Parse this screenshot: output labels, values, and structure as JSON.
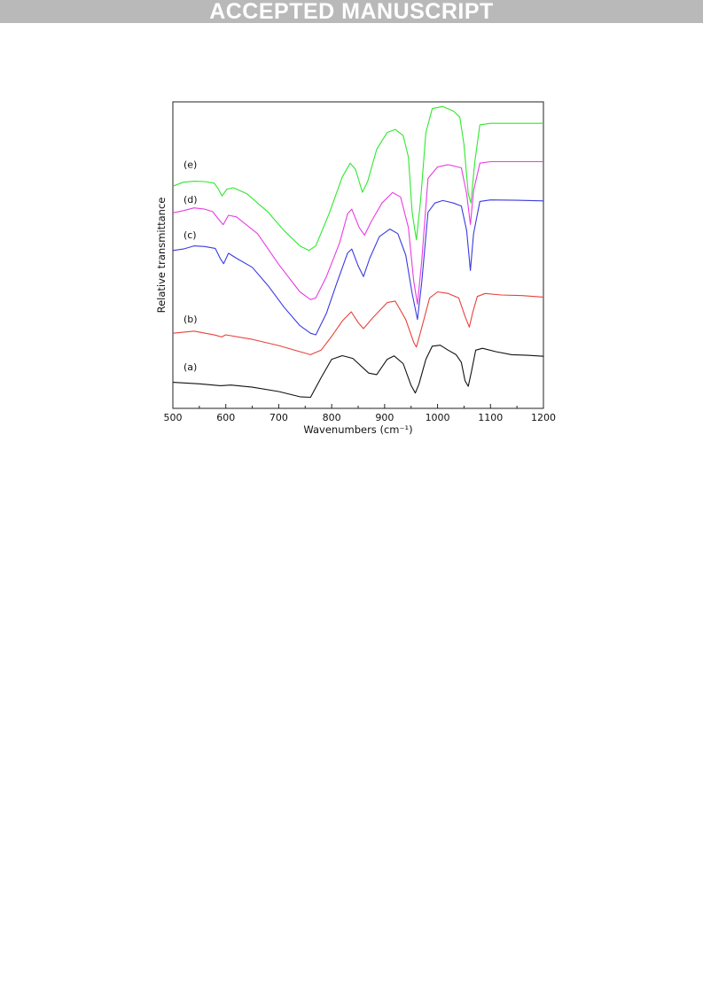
{
  "banner": {
    "text": "ACCEPTED MANUSCRIPT"
  },
  "chart_data": {
    "type": "line",
    "title": "",
    "xlabel": "Wavenumbers (cm⁻¹)",
    "ylabel": "Relative transmittance",
    "xlim": [
      500,
      1200
    ],
    "ylim": [
      0,
      100
    ],
    "x_ticks": [
      "500",
      "600",
      "700",
      "800",
      "900",
      "1000",
      "1100",
      "1200"
    ],
    "y_ticks_shown": false,
    "grid": false,
    "legend": "none",
    "series": [
      {
        "name": "(a)",
        "color": "#111111",
        "points": [
          [
            500,
            8.5
          ],
          [
            550,
            8
          ],
          [
            590,
            7.4
          ],
          [
            610,
            7.6
          ],
          [
            650,
            6.9
          ],
          [
            700,
            5.5
          ],
          [
            740,
            3.8
          ],
          [
            760,
            3.6
          ],
          [
            780,
            10
          ],
          [
            800,
            16
          ],
          [
            820,
            17.2
          ],
          [
            840,
            16.3
          ],
          [
            870,
            11.5
          ],
          [
            885,
            11
          ],
          [
            905,
            16
          ],
          [
            918,
            17.1
          ],
          [
            935,
            14.6
          ],
          [
            950,
            7.5
          ],
          [
            958,
            5
          ],
          [
            965,
            8
          ],
          [
            978,
            16
          ],
          [
            990,
            20.3
          ],
          [
            1005,
            20.6
          ],
          [
            1020,
            19
          ],
          [
            1035,
            17.5
          ],
          [
            1045,
            15
          ],
          [
            1052,
            9
          ],
          [
            1058,
            7.2
          ],
          [
            1064,
            12
          ],
          [
            1072,
            19
          ],
          [
            1085,
            19.6
          ],
          [
            1110,
            18.5
          ],
          [
            1140,
            17.5
          ],
          [
            1170,
            17.3
          ],
          [
            1200,
            17
          ]
        ]
      },
      {
        "name": "(b)",
        "color": "#e8413a",
        "points": [
          [
            500,
            24.5
          ],
          [
            540,
            25.2
          ],
          [
            580,
            23.9
          ],
          [
            592,
            23.3
          ],
          [
            600,
            24
          ],
          [
            650,
            22.5
          ],
          [
            700,
            20.5
          ],
          [
            740,
            18.5
          ],
          [
            760,
            17.5
          ],
          [
            780,
            19
          ],
          [
            800,
            23.5
          ],
          [
            820,
            28.5
          ],
          [
            837,
            31.5
          ],
          [
            850,
            28
          ],
          [
            860,
            26
          ],
          [
            880,
            30
          ],
          [
            905,
            34.5
          ],
          [
            920,
            35
          ],
          [
            940,
            29
          ],
          [
            955,
            21.5
          ],
          [
            960,
            20
          ],
          [
            968,
            25
          ],
          [
            985,
            36
          ],
          [
            1000,
            38
          ],
          [
            1020,
            37.5
          ],
          [
            1040,
            36
          ],
          [
            1052,
            30
          ],
          [
            1060,
            26.5
          ],
          [
            1066,
            31
          ],
          [
            1075,
            36.5
          ],
          [
            1090,
            37.5
          ],
          [
            1120,
            37
          ],
          [
            1160,
            36.8
          ],
          [
            1200,
            36.3
          ]
        ]
      },
      {
        "name": "(c)",
        "color": "#3a3ae0",
        "points": [
          [
            500,
            51.5
          ],
          [
            520,
            52
          ],
          [
            540,
            53
          ],
          [
            560,
            52.8
          ],
          [
            580,
            52.2
          ],
          [
            590,
            48.8
          ],
          [
            596,
            47.2
          ],
          [
            605,
            50.6
          ],
          [
            620,
            49
          ],
          [
            650,
            46
          ],
          [
            680,
            40
          ],
          [
            710,
            33
          ],
          [
            740,
            27
          ],
          [
            760,
            24.5
          ],
          [
            770,
            24
          ],
          [
            790,
            31
          ],
          [
            810,
            41
          ],
          [
            830,
            50.7
          ],
          [
            838,
            52
          ],
          [
            850,
            46.5
          ],
          [
            860,
            43
          ],
          [
            872,
            49
          ],
          [
            890,
            56
          ],
          [
            910,
            58.5
          ],
          [
            925,
            57
          ],
          [
            940,
            50
          ],
          [
            952,
            37.5
          ],
          [
            962,
            29
          ],
          [
            970,
            41
          ],
          [
            982,
            64
          ],
          [
            995,
            67
          ],
          [
            1010,
            67.8
          ],
          [
            1030,
            67
          ],
          [
            1045,
            66
          ],
          [
            1055,
            58
          ],
          [
            1062,
            45
          ],
          [
            1068,
            57
          ],
          [
            1080,
            67.5
          ],
          [
            1100,
            68
          ],
          [
            1150,
            67.9
          ],
          [
            1200,
            67.7
          ]
        ]
      },
      {
        "name": "(d)",
        "color": "#e83ce3",
        "points": [
          [
            500,
            63.8
          ],
          [
            520,
            64.5
          ],
          [
            540,
            65.4
          ],
          [
            560,
            65
          ],
          [
            575,
            64.2
          ],
          [
            585,
            62
          ],
          [
            595,
            59.9
          ],
          [
            605,
            63
          ],
          [
            620,
            62.5
          ],
          [
            660,
            57
          ],
          [
            700,
            47
          ],
          [
            740,
            38
          ],
          [
            760,
            35.5
          ],
          [
            770,
            36
          ],
          [
            790,
            43
          ],
          [
            815,
            54
          ],
          [
            830,
            63.5
          ],
          [
            838,
            65
          ],
          [
            852,
            59
          ],
          [
            862,
            56.5
          ],
          [
            875,
            61
          ],
          [
            895,
            67
          ],
          [
            915,
            70.4
          ],
          [
            930,
            69
          ],
          [
            945,
            59
          ],
          [
            955,
            41.5
          ],
          [
            962,
            34
          ],
          [
            970,
            48
          ],
          [
            982,
            75
          ],
          [
            1000,
            78.8
          ],
          [
            1020,
            79.5
          ],
          [
            1045,
            78.5
          ],
          [
            1055,
            70
          ],
          [
            1062,
            60
          ],
          [
            1068,
            71
          ],
          [
            1080,
            80
          ],
          [
            1100,
            80.5
          ],
          [
            1150,
            80.5
          ],
          [
            1200,
            80.5
          ]
        ]
      },
      {
        "name": "(e)",
        "color": "#2ee82e",
        "points": [
          [
            500,
            72.5
          ],
          [
            520,
            73.8
          ],
          [
            540,
            74.1
          ],
          [
            560,
            74
          ],
          [
            578,
            73.5
          ],
          [
            586,
            71.5
          ],
          [
            593,
            69.3
          ],
          [
            602,
            71.5
          ],
          [
            614,
            72
          ],
          [
            640,
            70
          ],
          [
            680,
            64
          ],
          [
            710,
            58
          ],
          [
            740,
            53
          ],
          [
            757,
            51.5
          ],
          [
            770,
            53
          ],
          [
            795,
            63.5
          ],
          [
            820,
            75.5
          ],
          [
            835,
            80
          ],
          [
            845,
            78
          ],
          [
            858,
            70.5
          ],
          [
            868,
            74
          ],
          [
            885,
            84.5
          ],
          [
            905,
            90
          ],
          [
            920,
            91
          ],
          [
            935,
            89
          ],
          [
            945,
            82
          ],
          [
            952,
            64
          ],
          [
            960,
            55
          ],
          [
            968,
            68
          ],
          [
            978,
            90
          ],
          [
            990,
            97.8
          ],
          [
            1010,
            98.5
          ],
          [
            1030,
            97
          ],
          [
            1042,
            95
          ],
          [
            1050,
            86
          ],
          [
            1058,
            70
          ],
          [
            1063,
            67
          ],
          [
            1070,
            80
          ],
          [
            1080,
            92.5
          ],
          [
            1100,
            93
          ],
          [
            1150,
            93
          ],
          [
            1200,
            93
          ]
        ]
      }
    ],
    "curve_labels": [
      {
        "text": "(a)",
        "x": 520,
        "y": 12.5
      },
      {
        "text": "(b)",
        "x": 520,
        "y": 28
      },
      {
        "text": "(c)",
        "x": 520,
        "y": 55.5
      },
      {
        "text": "(d)",
        "x": 520,
        "y": 67
      },
      {
        "text": "(e)",
        "x": 520,
        "y": 78.5
      }
    ]
  }
}
